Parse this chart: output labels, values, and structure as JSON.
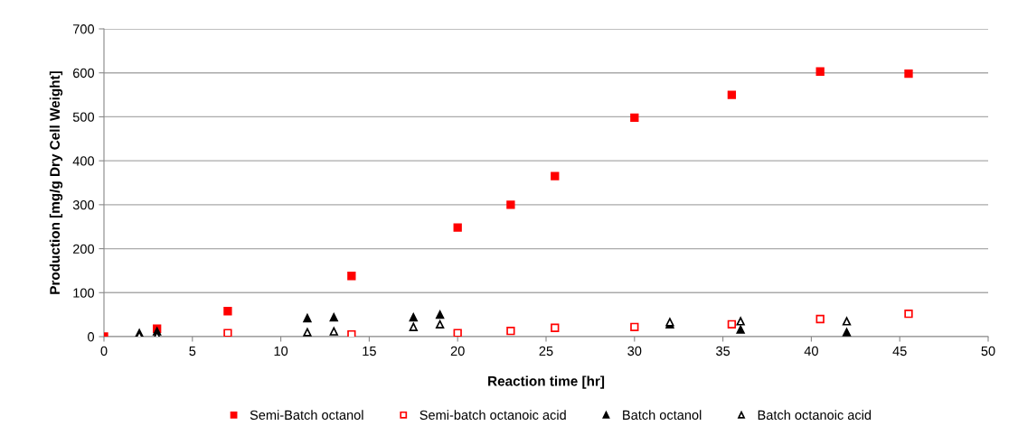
{
  "chart_data": {
    "type": "scatter",
    "xlabel": "Reaction time [hr]",
    "ylabel": "Production [mg/g Dry Cell Weight]",
    "xlim": [
      0,
      50
    ],
    "xticks": [
      0,
      5,
      10,
      15,
      20,
      25,
      30,
      35,
      40,
      45,
      50
    ],
    "ylim": [
      0,
      700
    ],
    "yticks": [
      0,
      100,
      200,
      300,
      400,
      500,
      600,
      700
    ],
    "grid": "y",
    "legend": "bottom",
    "series": [
      {
        "name": "Semi-Batch octanol",
        "color": "#ff0000",
        "marker": "square",
        "x": [
          0,
          3,
          7,
          14,
          20,
          23,
          25.5,
          30,
          35.5,
          40.5,
          45.5
        ],
        "values": [
          0,
          18,
          58,
          138,
          248,
          300,
          365,
          498,
          550,
          603,
          598
        ]
      },
      {
        "name": "Semi-batch octanoic acid",
        "color": "#ff0000",
        "marker": "square",
        "x": [
          7,
          14,
          20,
          23,
          25.5,
          30,
          35.5,
          40.5,
          45.5
        ],
        "values": [
          8,
          5,
          8,
          13,
          20,
          22,
          28,
          40,
          52
        ]
      },
      {
        "name": "Batch octanol",
        "color": "#000000",
        "marker": "triangle",
        "x": [
          2,
          3,
          11.5,
          13,
          17.5,
          19,
          32,
          36,
          42
        ],
        "values": [
          8,
          12,
          42,
          44,
          44,
          50,
          28,
          16,
          10
        ]
      },
      {
        "name": "Batch octanoic acid",
        "color": "#000000",
        "marker": "triangle",
        "x": [
          2,
          3,
          11.5,
          13,
          17.5,
          19,
          32,
          36,
          42
        ],
        "values": [
          3,
          2,
          10,
          12,
          22,
          28,
          33,
          35,
          35
        ]
      }
    ]
  }
}
